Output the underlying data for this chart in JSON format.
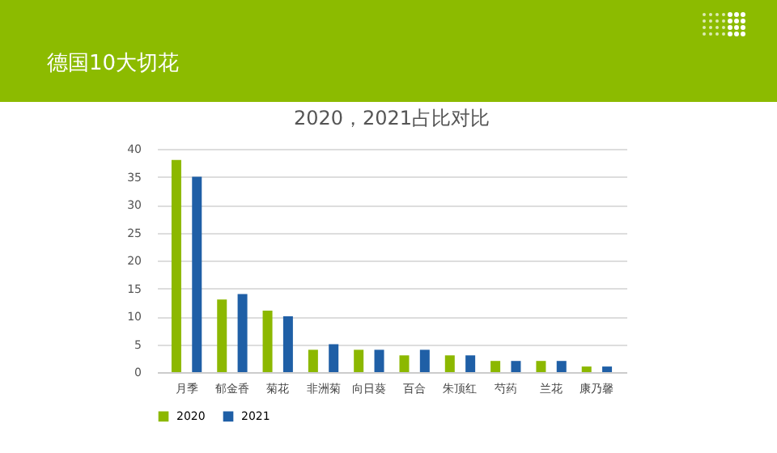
{
  "chart_data": {
    "type": "bar",
    "title": "德国10大切花",
    "subtitle": "2020，2021占比对比",
    "categories": [
      "月季",
      "郁金香",
      "菊花",
      "非洲菊",
      "向日葵",
      "百合",
      "朱顶红",
      "芍药",
      "兰花",
      "康乃馨"
    ],
    "series": [
      {
        "name": "2020",
        "color": "#8cb800",
        "values": [
          38,
          13,
          11,
          4,
          4,
          3,
          3,
          2,
          2,
          1
        ]
      },
      {
        "name": "2021",
        "color": "#1f5fa6",
        "values": [
          35,
          14,
          10,
          5,
          4,
          4,
          3,
          2,
          2,
          1
        ]
      }
    ],
    "ylim": [
      0,
      40
    ],
    "yticks": [
      0,
      5,
      10,
      15,
      20,
      25,
      30,
      35,
      40
    ],
    "grid": "y",
    "legend": "bottom"
  }
}
